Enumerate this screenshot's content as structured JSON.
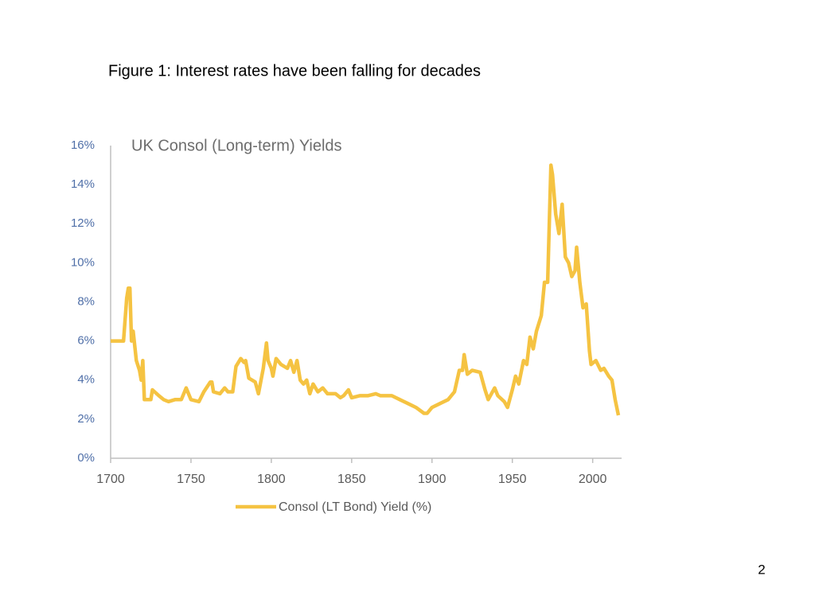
{
  "figure_caption": "Figure 1:  Interest rates have been falling for decades",
  "page_number": "2",
  "chart_data": {
    "type": "line",
    "title": "UK Consol (Long-term) Yields",
    "x": [
      1700,
      1708,
      1710,
      1711,
      1712,
      1713,
      1714,
      1716,
      1718,
      1719,
      1720,
      1721,
      1725,
      1726,
      1730,
      1733,
      1736,
      1740,
      1744,
      1747,
      1749,
      1750,
      1755,
      1758,
      1762,
      1763,
      1764,
      1768,
      1771,
      1773,
      1776,
      1778,
      1781,
      1783,
      1784,
      1786,
      1790,
      1792,
      1795,
      1797,
      1798,
      1800,
      1801,
      1803,
      1806,
      1810,
      1812,
      1814,
      1816,
      1818,
      1820,
      1822,
      1824,
      1826,
      1829,
      1832,
      1835,
      1840,
      1843,
      1845,
      1848,
      1850,
      1855,
      1860,
      1865,
      1868,
      1875,
      1880,
      1885,
      1890,
      1895,
      1897,
      1900,
      1905,
      1910,
      1914,
      1917,
      1919,
      1920,
      1922,
      1925,
      1930,
      1933,
      1935,
      1939,
      1941,
      1945,
      1947,
      1950,
      1952,
      1954,
      1957,
      1959,
      1961,
      1963,
      1965,
      1968,
      1970,
      1972,
      1974,
      1975,
      1977,
      1979,
      1981,
      1983,
      1985,
      1987,
      1989,
      1990,
      1992,
      1994,
      1996,
      1998,
      1999,
      2002,
      2005,
      2007,
      2010,
      2012,
      2014,
      2016
    ],
    "series": [
      {
        "name": "Consol (LT Bond) Yield (%)",
        "color": "#f5c342",
        "values": [
          6.0,
          6.0,
          8.2,
          8.7,
          8.7,
          6.0,
          6.5,
          5.0,
          4.5,
          4.0,
          5.0,
          3.0,
          3.0,
          3.5,
          3.2,
          3.0,
          2.9,
          3.0,
          3.0,
          3.6,
          3.2,
          3.0,
          2.9,
          3.4,
          3.9,
          3.9,
          3.4,
          3.3,
          3.6,
          3.4,
          3.4,
          4.7,
          5.1,
          4.9,
          5.0,
          4.1,
          3.9,
          3.3,
          4.6,
          5.9,
          5.0,
          4.6,
          4.2,
          5.1,
          4.8,
          4.6,
          5.0,
          4.4,
          5.0,
          4.0,
          3.8,
          4.0,
          3.3,
          3.8,
          3.4,
          3.6,
          3.3,
          3.3,
          3.1,
          3.2,
          3.5,
          3.1,
          3.2,
          3.2,
          3.3,
          3.2,
          3.2,
          3.0,
          2.8,
          2.6,
          2.3,
          2.3,
          2.6,
          2.8,
          3.0,
          3.4,
          4.5,
          4.5,
          5.3,
          4.3,
          4.5,
          4.4,
          3.5,
          3.0,
          3.6,
          3.2,
          2.9,
          2.6,
          3.5,
          4.2,
          3.8,
          5.0,
          4.8,
          6.2,
          5.6,
          6.5,
          7.3,
          9.0,
          9.0,
          15.0,
          14.5,
          12.5,
          11.5,
          13.0,
          10.3,
          10.0,
          9.3,
          9.6,
          10.8,
          9.0,
          7.7,
          7.9,
          5.5,
          4.8,
          5.0,
          4.5,
          4.6,
          4.2,
          4.0,
          3.0,
          2.2
        ]
      }
    ],
    "xlim": [
      1700,
      2018
    ],
    "xticks": [
      1700,
      1750,
      1800,
      1850,
      1900,
      1950,
      2000
    ],
    "ylim": [
      0,
      16
    ],
    "yticks": [
      {
        "value": 0,
        "label": "0%"
      },
      {
        "value": 2,
        "label": "2%"
      },
      {
        "value": 4,
        "label": "4%"
      },
      {
        "value": 6,
        "label": "6%"
      },
      {
        "value": 8,
        "label": "8%"
      },
      {
        "value": 10,
        "label": "10%"
      },
      {
        "value": 12,
        "label": "12%"
      },
      {
        "value": 14,
        "label": "14%"
      },
      {
        "value": 16,
        "label": "16%"
      }
    ],
    "grid": false,
    "legend": "bottom"
  }
}
